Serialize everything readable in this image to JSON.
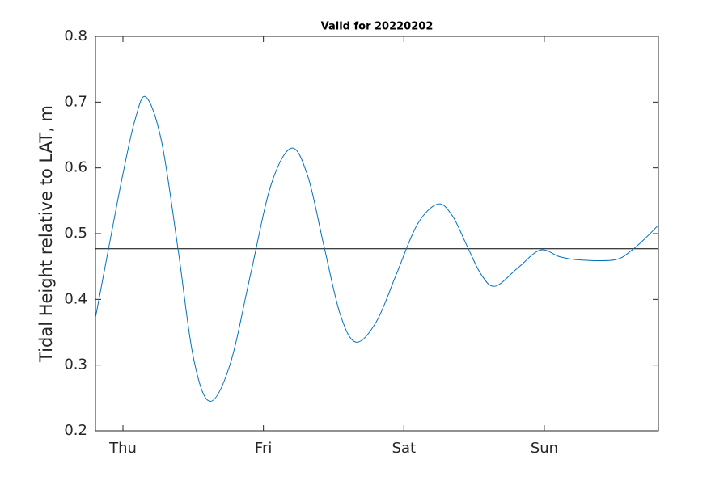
{
  "chart_data": {
    "type": "line",
    "title": "Valid for 20220202",
    "y_label": "Tidal Height relative to LAT, m",
    "x": [
      -4.7,
      -2,
      0,
      2,
      3.9,
      6.6,
      9.4,
      12.0,
      14.8,
      18.3,
      21.8,
      25.3,
      28.8,
      31.6,
      34.3,
      37.1,
      39.8,
      43.3,
      46.8,
      50.3,
      53.8,
      56.3,
      58.7,
      61.2,
      63.6,
      67.5,
      71.3,
      74.6,
      78,
      84,
      87,
      89.5,
      91.5
    ],
    "series": [
      {
        "name": "Tidal Height",
        "color": "#0072bd",
        "values": [
          0.372,
          0.499,
          0.591,
          0.671,
          0.708,
          0.64,
          0.477,
          0.313,
          0.245,
          0.301,
          0.438,
          0.574,
          0.63,
          0.587,
          0.483,
          0.378,
          0.335,
          0.366,
          0.44,
          0.514,
          0.545,
          0.527,
          0.483,
          0.438,
          0.42,
          0.448,
          0.475,
          0.465,
          0.46,
          0.46,
          0.475,
          0.495,
          0.513
        ]
      }
    ],
    "reference_line": {
      "value": 0.477,
      "color": "#000000"
    },
    "xlim": [
      -4.7,
      91.5
    ],
    "xticks": [
      {
        "value": 0,
        "label": "Thu"
      },
      {
        "value": 24,
        "label": "Fri"
      },
      {
        "value": 48,
        "label": "Sat"
      },
      {
        "value": 72,
        "label": "Sun"
      }
    ],
    "ylim": [
      0.2,
      0.8
    ],
    "yticks": [
      0.2,
      0.3,
      0.4,
      0.5,
      0.6,
      0.7,
      0.8
    ],
    "grid": false
  }
}
